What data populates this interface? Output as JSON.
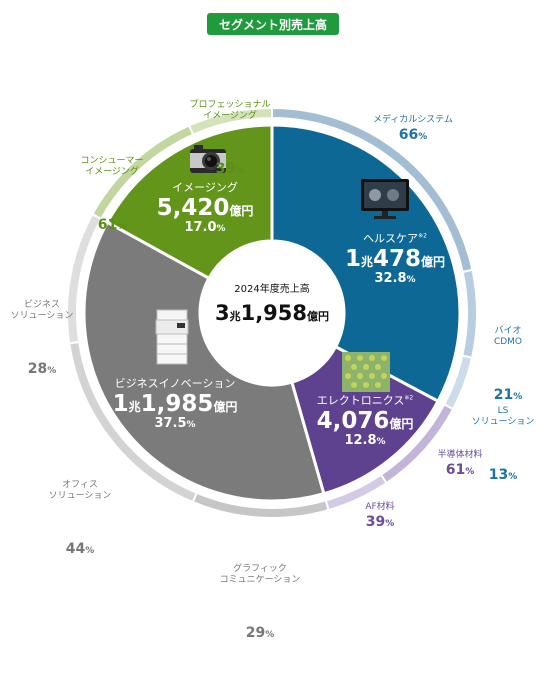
{
  "header": {
    "title": "セグメント別売上高"
  },
  "center": {
    "caption": "2024年度売上高",
    "total_big1": "3",
    "total_unit1": "兆",
    "total_big2": "1,958",
    "total_unit2": "億円"
  },
  "colors": {
    "imaging": "#64951b",
    "healthcare": "#0d6896",
    "electronics": "#5e4290",
    "business": "#7b7b7b",
    "center": "#ffffff"
  },
  "icons": {
    "imaging": "camera-icon",
    "healthcare": "medical-monitor-icon",
    "electronics": "semiconductor-wafer-icon",
    "business": "multifunction-printer-icon"
  },
  "chart_data": [
    {
      "type": "pie",
      "title": "セグメント別売上高",
      "slices": [
        {
          "name": "ヘルスケア",
          "note": "※2",
          "value_label_big": "1",
          "value_label_mid": "兆",
          "value_label_big2": "478",
          "value_label_unit": "億円",
          "value": 10478,
          "percent": 32.8,
          "percent_label": "32.8",
          "percent_unit": "%"
        },
        {
          "name": "エレクトロニクス",
          "note": "※2",
          "value_label_big": "4,076",
          "value_label_unit": "億円",
          "value": 4076,
          "percent": 12.8,
          "percent_label": "12.8",
          "percent_unit": "%"
        },
        {
          "name": "ビジネスイノベーション",
          "value_label_big": "1",
          "value_label_mid": "兆",
          "value_label_big2": "1,985",
          "value_label_unit": "億円",
          "value": 11985,
          "percent": 37.5,
          "percent_label": "37.5",
          "percent_unit": "%"
        },
        {
          "name": "イメージング",
          "value_label_big": "5,420",
          "value_label_unit": "億円",
          "value": 5420,
          "percent": 17.0,
          "percent_label": "17.0",
          "percent_unit": "%"
        }
      ]
    },
    {
      "type": "pie",
      "sub_breakdown": [
        {
          "segment": "ヘルスケア",
          "parts": [
            {
              "name": "メディカルシステム",
              "percent": 66
            },
            {
              "name": "バイオ\nCDMO",
              "percent": 21
            },
            {
              "name": "LS\nソリューション",
              "percent": 13
            }
          ]
        },
        {
          "segment": "エレクトロニクス",
          "parts": [
            {
              "name": "半導体材料",
              "percent": 61
            },
            {
              "name": "AF材料",
              "percent": 39
            }
          ]
        },
        {
          "segment": "ビジネスイノベーション",
          "parts": [
            {
              "name": "グラフィック\nコミュニケーション",
              "percent": 29
            },
            {
              "name": "オフィス\nソリューション",
              "percent": 44
            },
            {
              "name": "ビジネス\nソリューション",
              "percent": 28
            }
          ]
        },
        {
          "segment": "イメージング",
          "parts": [
            {
              "name": "コンシューマー\nイメージング",
              "percent": 61
            },
            {
              "name": "プロフェッショナル\nイメージング",
              "percent": 39
            }
          ]
        }
      ],
      "percent_unit": "%"
    }
  ]
}
